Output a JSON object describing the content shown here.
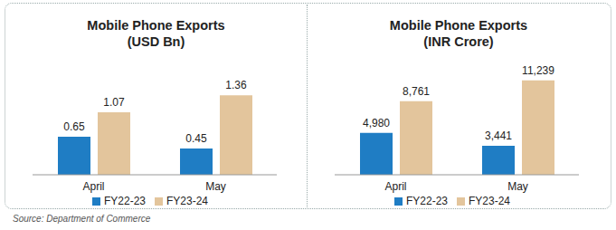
{
  "chart_data": [
    {
      "type": "bar",
      "title": "Mobile Phone Exports",
      "subtitle": "(USD Bn)",
      "categories": [
        "April",
        "May"
      ],
      "series": [
        {
          "name": "FY22-23",
          "color": "#1f7dc4",
          "values": [
            0.65,
            0.45
          ]
        },
        {
          "name": "FY23-24",
          "color": "#e3c59c",
          "values": [
            1.07,
            1.36
          ]
        }
      ],
      "ylim": [
        0,
        1.8
      ],
      "grid": false,
      "legend": "bottom",
      "data_labels": true,
      "tick_labels": "x"
    },
    {
      "type": "bar",
      "title": "Mobile Phone Exports",
      "subtitle": "(INR Crore)",
      "categories": [
        "April",
        "May"
      ],
      "series": [
        {
          "name": "FY22-23",
          "color": "#1f7dc4",
          "values": [
            4980,
            3441
          ],
          "value_labels": [
            "4,980",
            "3,441"
          ]
        },
        {
          "name": "FY23-24",
          "color": "#e3c59c",
          "values": [
            8761,
            11239
          ],
          "value_labels": [
            "8,761",
            "11,239"
          ]
        }
      ],
      "ylim": [
        0,
        12500
      ],
      "grid": false,
      "legend": "bottom",
      "data_labels": true,
      "tick_labels": "x"
    }
  ],
  "source": "Source: Department of Commerce"
}
